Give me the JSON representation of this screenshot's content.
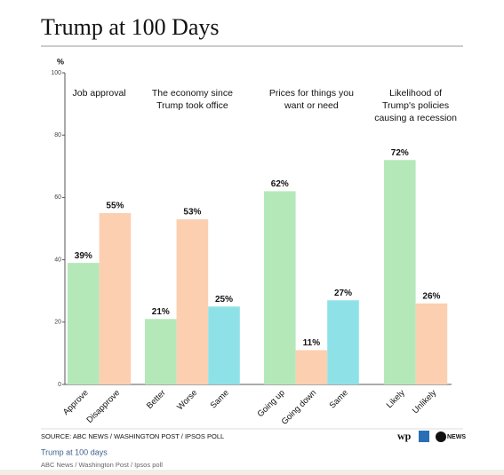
{
  "chart_data": {
    "type": "bar",
    "title": "Trump at 100 Days",
    "ylabel": "%",
    "ylim": [
      0,
      100
    ],
    "yticks": [
      0,
      20,
      40,
      60,
      80,
      100
    ],
    "panels": [
      {
        "title_lines": [
          "Job approval"
        ],
        "categories": [
          "Approve",
          "Disapprove"
        ],
        "values": [
          39,
          55
        ],
        "value_labels": [
          "39%",
          "55%"
        ],
        "colors": [
          "#b5e8b9",
          "#fccfb1"
        ]
      },
      {
        "title_lines": [
          "The economy since",
          "Trump took office"
        ],
        "categories": [
          "Better",
          "Worse",
          "Same"
        ],
        "values": [
          21,
          53,
          25
        ],
        "value_labels": [
          "21%",
          "53%",
          "25%"
        ],
        "colors": [
          "#b5e8b9",
          "#fccfb1",
          "#8fe1e8"
        ]
      },
      {
        "title_lines": [
          "Prices for things you",
          "want or need"
        ],
        "categories": [
          "Going up",
          "Going down",
          "Same"
        ],
        "values": [
          62,
          11,
          27
        ],
        "value_labels": [
          "62%",
          "11%",
          "27%"
        ],
        "colors": [
          "#b5e8b9",
          "#fccfb1",
          "#8fe1e8"
        ]
      },
      {
        "title_lines": [
          "Likelihood of",
          "Trump's policies",
          "causing a recession"
        ],
        "categories": [
          "Likely",
          "Unlikely"
        ],
        "values": [
          72,
          26
        ],
        "value_labels": [
          "72%",
          "26%"
        ],
        "colors": [
          "#b5e8b9",
          "#fccfb1"
        ]
      }
    ],
    "source": "SOURCE: ABC NEWS / WASHINGTON POST / IPSOS POLL",
    "logos": [
      "wp",
      "NEWS"
    ]
  },
  "caption": "Trump at 100 days",
  "credit": "ABC News / Washington Post / Ipsos poll"
}
